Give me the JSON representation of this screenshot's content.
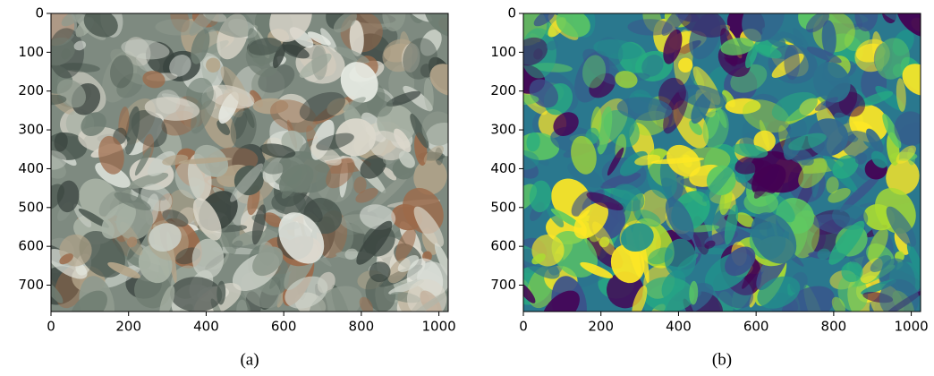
{
  "chart_data": [
    {
      "type": "image",
      "caption": "(a)",
      "xlim": [
        0,
        1024
      ],
      "ylim": [
        768,
        0
      ],
      "xticks": [
        0,
        200,
        400,
        600,
        800,
        1000
      ],
      "yticks": [
        0,
        100,
        200,
        300,
        400,
        500,
        600,
        700
      ]
    },
    {
      "type": "image",
      "caption": "(b)",
      "colormap": "viridis",
      "xlim": [
        0,
        1024
      ],
      "ylim": [
        768,
        0
      ],
      "xticks": [
        0,
        200,
        400,
        600,
        800,
        1000
      ],
      "yticks": [
        0,
        100,
        200,
        300,
        400,
        500,
        600,
        700
      ]
    }
  ]
}
